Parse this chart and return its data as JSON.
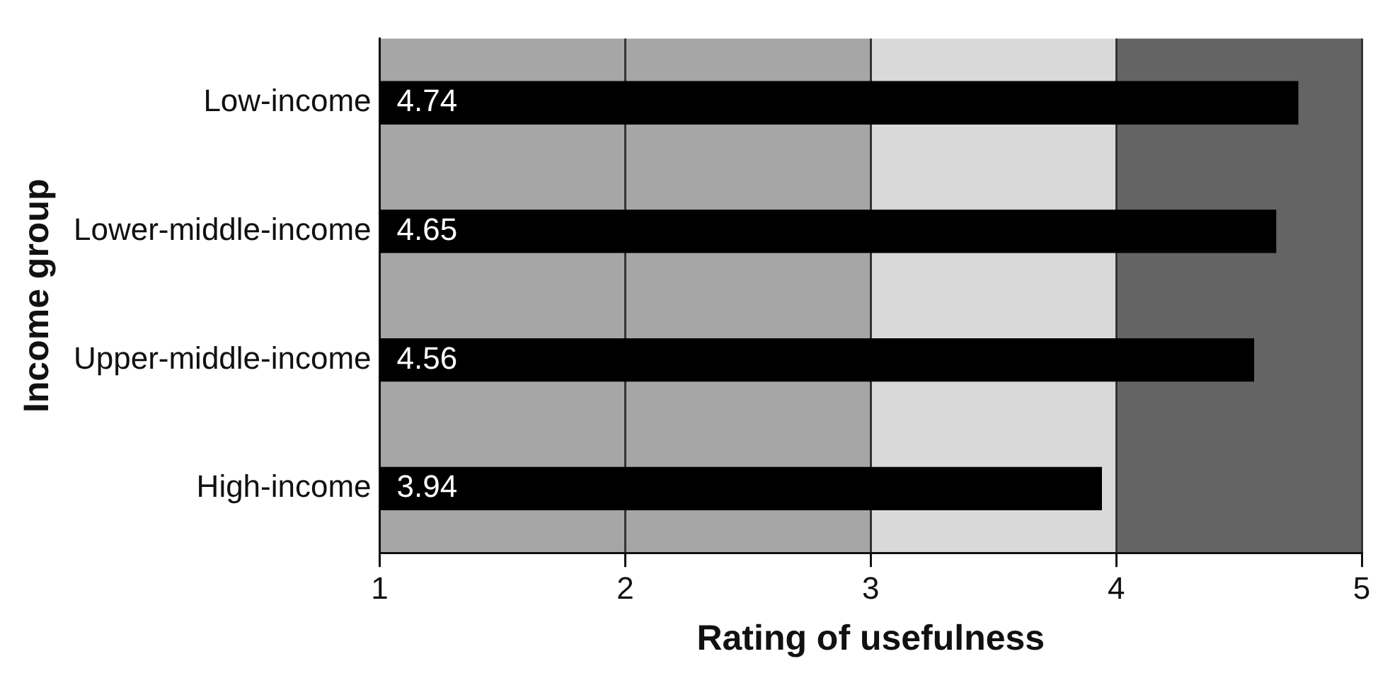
{
  "chart_data": {
    "type": "bar",
    "orientation": "horizontal",
    "xlabel": "Rating of usefulness",
    "ylabel": "Income group",
    "categories": [
      "Low-income",
      "Lower-middle-income",
      "Upper-middle-income",
      "High-income"
    ],
    "values": [
      4.74,
      4.65,
      4.56,
      3.94
    ],
    "color": "#000000",
    "data_labels": true,
    "xlim": [
      1,
      5
    ],
    "xticks": [
      1,
      2,
      3,
      4,
      5
    ],
    "grid": "x",
    "bands": [
      {
        "axis": "x",
        "from": 1,
        "to": 3,
        "color": "#a6a6a6"
      },
      {
        "axis": "x",
        "from": 3,
        "to": 4,
        "color": "#d9d9d9"
      },
      {
        "axis": "x",
        "from": 4,
        "to": 5,
        "color": "#646464"
      }
    ]
  }
}
